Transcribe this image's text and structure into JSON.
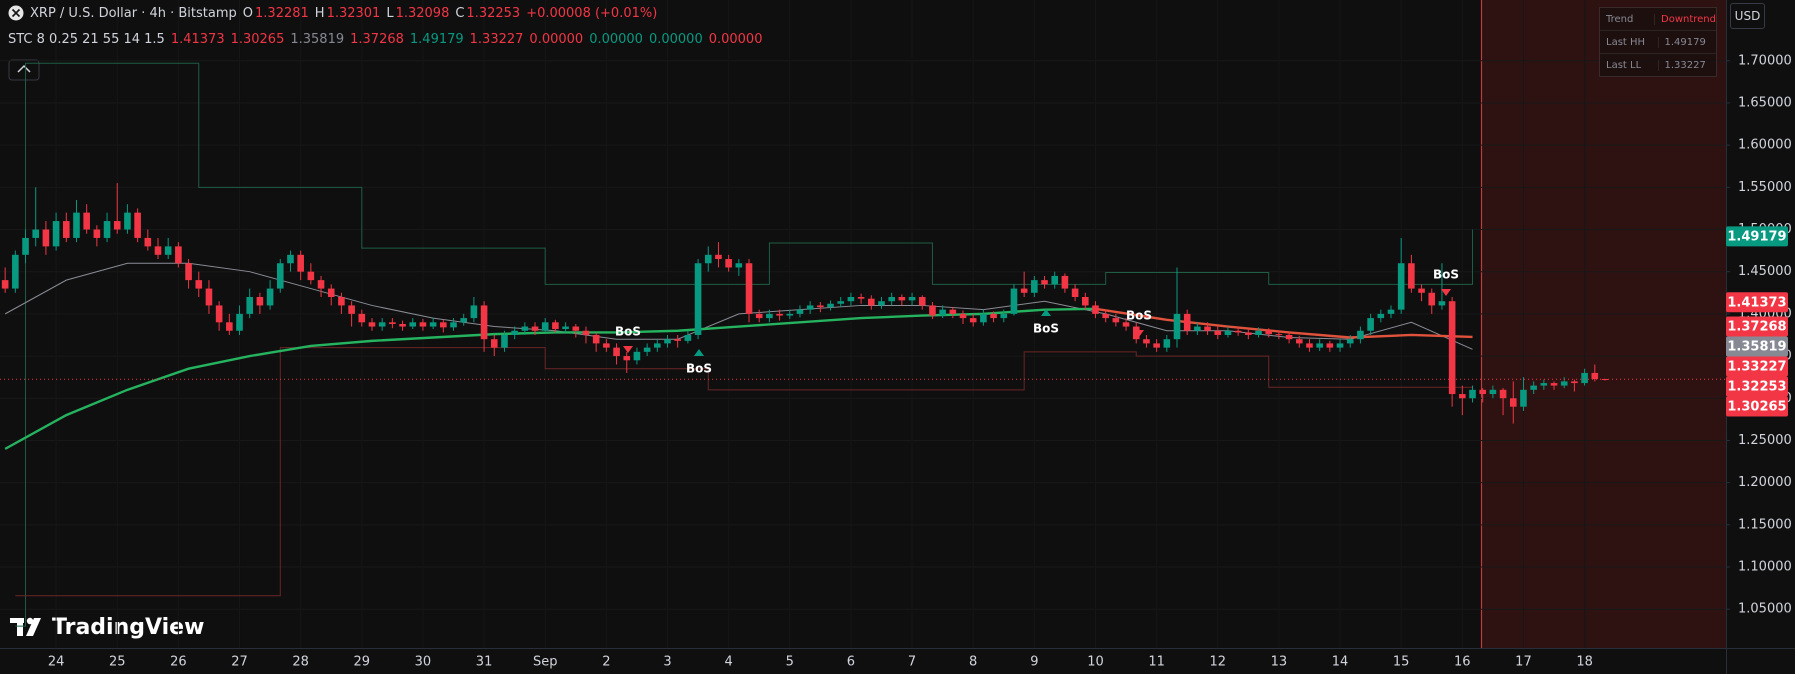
{
  "chart_data": {
    "type": "candlestick",
    "title": "XRP / U.S. Dollar · 4h · Bitstamp",
    "ohlc_labels": [
      "O",
      "H",
      "L",
      "C"
    ],
    "change": "+0.00008 (+0.01%)",
    "indicator": {
      "name": "STC 8 0.25 21 55 14 1.5",
      "values": [
        {
          "value": 1.41373,
          "color": "#f23645"
        },
        {
          "value": 1.30265,
          "color": "#f23645"
        },
        {
          "value": 1.35819,
          "color": "#868993"
        },
        {
          "value": 1.37268,
          "color": "#f23645"
        },
        {
          "value": 1.49179,
          "color": "#089981"
        },
        {
          "value": 1.33227,
          "color": "#f23645"
        },
        {
          "value": 0,
          "label": "0.00000",
          "color": "#f23645"
        },
        {
          "value": 0,
          "label": "0.00000",
          "color": "#089981"
        },
        {
          "value": 0,
          "label": "0.00000",
          "color": "#089981"
        },
        {
          "value": 0,
          "label": "0.00000",
          "color": "#f23645"
        }
      ]
    },
    "trend_table": {
      "trend_label": "Trend",
      "trend": "Downtrend",
      "hh_label": "Last HH",
      "ll_label": "Last LL"
    },
    "annotations": [
      "BoS",
      "BoS",
      "BoS",
      "BoS",
      "BoS"
    ],
    "currency": "USD",
    "watermark": "TradingView",
    "up_color": "#089981",
    "down_color": "#f23645",
    "categories": [
      null,
      null,
      null,
      null,
      null,
      "24",
      null,
      null,
      null,
      null,
      null,
      "25",
      null,
      null,
      null,
      null,
      null,
      "26",
      null,
      null,
      null,
      null,
      null,
      "27",
      null,
      null,
      null,
      null,
      null,
      "28",
      null,
      null,
      null,
      null,
      null,
      "29",
      null,
      null,
      null,
      null,
      null,
      "30",
      null,
      null,
      null,
      null,
      null,
      "31",
      null,
      null,
      null,
      null,
      null,
      "Sep",
      null,
      null,
      null,
      null,
      null,
      "2",
      null,
      null,
      null,
      null,
      null,
      "3",
      null,
      null,
      null,
      null,
      null,
      "4",
      null,
      null,
      null,
      null,
      null,
      "5",
      null,
      null,
      null,
      null,
      null,
      "6",
      null,
      null,
      null,
      null,
      null,
      "7",
      null,
      null,
      null,
      null,
      null,
      "8",
      null,
      null,
      null,
      null,
      null,
      "9",
      null,
      null,
      null,
      null,
      null,
      "10",
      null,
      null,
      null,
      null,
      null,
      "11",
      null,
      null,
      null,
      null,
      null,
      "12",
      null,
      null,
      null,
      null,
      null,
      "13",
      null,
      null,
      null,
      null,
      null,
      "14",
      null,
      null,
      null,
      null,
      null,
      "15",
      null,
      null,
      null,
      null,
      null,
      "16",
      null,
      null,
      null,
      null,
      null,
      "17",
      null,
      null,
      null,
      null,
      null,
      "18",
      null,
      null
    ],
    "ohlc": [
      [
        1.44,
        1.455,
        1.425,
        1.43
      ],
      [
        1.43,
        1.475,
        1.425,
        1.47
      ],
      [
        1.47,
        1.5,
        1.46,
        1.49
      ],
      [
        1.49,
        1.55,
        1.48,
        1.5
      ],
      [
        1.5,
        1.51,
        1.47,
        1.48
      ],
      [
        1.48,
        1.52,
        1.475,
        1.51
      ],
      [
        1.51,
        1.52,
        1.485,
        1.49
      ],
      [
        1.49,
        1.535,
        1.485,
        1.52
      ],
      [
        1.52,
        1.53,
        1.495,
        1.5
      ],
      [
        1.5,
        1.505,
        1.48,
        1.49
      ],
      [
        1.49,
        1.52,
        1.485,
        1.51
      ],
      [
        1.51,
        1.555,
        1.495,
        1.5
      ],
      [
        1.5,
        1.53,
        1.495,
        1.52
      ],
      [
        1.52,
        1.525,
        1.485,
        1.49
      ],
      [
        1.49,
        1.5,
        1.475,
        1.48
      ],
      [
        1.48,
        1.49,
        1.465,
        1.47
      ],
      [
        1.47,
        1.49,
        1.465,
        1.48
      ],
      [
        1.48,
        1.485,
        1.455,
        1.46
      ],
      [
        1.46,
        1.465,
        1.43,
        1.44
      ],
      [
        1.44,
        1.45,
        1.42,
        1.43
      ],
      [
        1.43,
        1.44,
        1.4,
        1.41
      ],
      [
        1.41,
        1.415,
        1.38,
        1.39
      ],
      [
        1.39,
        1.4,
        1.375,
        1.38
      ],
      [
        1.38,
        1.41,
        1.375,
        1.4
      ],
      [
        1.4,
        1.43,
        1.395,
        1.42
      ],
      [
        1.42,
        1.425,
        1.4,
        1.41
      ],
      [
        1.41,
        1.44,
        1.405,
        1.43
      ],
      [
        1.43,
        1.465,
        1.425,
        1.46
      ],
      [
        1.46,
        1.475,
        1.45,
        1.47
      ],
      [
        1.47,
        1.475,
        1.44,
        1.45
      ],
      [
        1.45,
        1.46,
        1.435,
        1.44
      ],
      [
        1.44,
        1.445,
        1.42,
        1.43
      ],
      [
        1.43,
        1.435,
        1.41,
        1.42
      ],
      [
        1.42,
        1.425,
        1.4,
        1.41
      ],
      [
        1.41,
        1.415,
        1.385,
        1.4
      ],
      [
        1.4,
        1.405,
        1.385,
        1.39
      ],
      [
        1.39,
        1.395,
        1.38,
        1.385
      ],
      [
        1.385,
        1.395,
        1.38,
        1.39
      ],
      [
        1.39,
        1.395,
        1.383,
        1.388
      ],
      [
        1.388,
        1.392,
        1.38,
        1.385
      ],
      [
        1.385,
        1.395,
        1.382,
        1.39
      ],
      [
        1.39,
        1.394,
        1.38,
        1.385
      ],
      [
        1.385,
        1.395,
        1.382,
        1.39
      ],
      [
        1.39,
        1.393,
        1.378,
        1.384
      ],
      [
        1.384,
        1.395,
        1.38,
        1.39
      ],
      [
        1.39,
        1.4,
        1.386,
        1.395
      ],
      [
        1.395,
        1.42,
        1.39,
        1.41
      ],
      [
        1.41,
        1.415,
        1.355,
        1.37
      ],
      [
        1.37,
        1.375,
        1.35,
        1.36
      ],
      [
        1.36,
        1.38,
        1.355,
        1.375
      ],
      [
        1.375,
        1.385,
        1.37,
        1.38
      ],
      [
        1.38,
        1.39,
        1.375,
        1.385
      ],
      [
        1.385,
        1.39,
        1.375,
        1.38
      ],
      [
        1.38,
        1.395,
        1.378,
        1.39
      ],
      [
        1.39,
        1.393,
        1.378,
        1.382
      ],
      [
        1.382,
        1.39,
        1.378,
        1.385
      ],
      [
        1.385,
        1.388,
        1.372,
        1.38
      ],
      [
        1.38,
        1.385,
        1.365,
        1.375
      ],
      [
        1.375,
        1.378,
        1.355,
        1.365
      ],
      [
        1.365,
        1.37,
        1.355,
        1.36
      ],
      [
        1.36,
        1.365,
        1.34,
        1.35
      ],
      [
        1.35,
        1.355,
        1.33,
        1.345
      ],
      [
        1.345,
        1.36,
        1.34,
        1.355
      ],
      [
        1.355,
        1.365,
        1.35,
        1.36
      ],
      [
        1.36,
        1.37,
        1.355,
        1.365
      ],
      [
        1.365,
        1.375,
        1.36,
        1.37
      ],
      [
        1.37,
        1.375,
        1.36,
        1.368
      ],
      [
        1.368,
        1.38,
        1.365,
        1.375
      ],
      [
        1.375,
        1.465,
        1.37,
        1.46
      ],
      [
        1.46,
        1.48,
        1.45,
        1.47
      ],
      [
        1.47,
        1.485,
        1.455,
        1.465
      ],
      [
        1.465,
        1.47,
        1.45,
        1.455
      ],
      [
        1.455,
        1.465,
        1.445,
        1.46
      ],
      [
        1.46,
        1.465,
        1.39,
        1.4
      ],
      [
        1.4,
        1.405,
        1.39,
        1.395
      ],
      [
        1.395,
        1.405,
        1.39,
        1.4
      ],
      [
        1.4,
        1.405,
        1.392,
        1.398
      ],
      [
        1.398,
        1.405,
        1.394,
        1.4
      ],
      [
        1.4,
        1.41,
        1.396,
        1.405
      ],
      [
        1.405,
        1.415,
        1.4,
        1.41
      ],
      [
        1.41,
        1.414,
        1.402,
        1.408
      ],
      [
        1.408,
        1.416,
        1.404,
        1.412
      ],
      [
        1.412,
        1.42,
        1.408,
        1.415
      ],
      [
        1.415,
        1.425,
        1.41,
        1.42
      ],
      [
        1.42,
        1.424,
        1.412,
        1.418
      ],
      [
        1.418,
        1.422,
        1.405,
        1.41
      ],
      [
        1.41,
        1.42,
        1.406,
        1.415
      ],
      [
        1.415,
        1.425,
        1.41,
        1.42
      ],
      [
        1.42,
        1.423,
        1.41,
        1.416
      ],
      [
        1.416,
        1.425,
        1.41,
        1.42
      ],
      [
        1.42,
        1.422,
        1.405,
        1.41
      ],
      [
        1.41,
        1.414,
        1.394,
        1.398
      ],
      [
        1.398,
        1.41,
        1.395,
        1.405
      ],
      [
        1.405,
        1.408,
        1.395,
        1.4
      ],
      [
        1.4,
        1.404,
        1.388,
        1.395
      ],
      [
        1.395,
        1.4,
        1.385,
        1.39
      ],
      [
        1.39,
        1.405,
        1.386,
        1.4
      ],
      [
        1.4,
        1.403,
        1.39,
        1.395
      ],
      [
        1.395,
        1.405,
        1.39,
        1.4
      ],
      [
        1.4,
        1.435,
        1.398,
        1.43
      ],
      [
        1.43,
        1.45,
        1.42,
        1.425
      ],
      [
        1.425,
        1.445,
        1.42,
        1.44
      ],
      [
        1.44,
        1.445,
        1.43,
        1.435
      ],
      [
        1.435,
        1.45,
        1.43,
        1.445
      ],
      [
        1.445,
        1.448,
        1.425,
        1.43
      ],
      [
        1.43,
        1.435,
        1.415,
        1.42
      ],
      [
        1.42,
        1.425,
        1.405,
        1.41
      ],
      [
        1.41,
        1.415,
        1.395,
        1.4
      ],
      [
        1.4,
        1.405,
        1.39,
        1.395
      ],
      [
        1.395,
        1.4,
        1.385,
        1.39
      ],
      [
        1.39,
        1.395,
        1.38,
        1.385
      ],
      [
        1.385,
        1.39,
        1.365,
        1.37
      ],
      [
        1.37,
        1.375,
        1.36,
        1.365
      ],
      [
        1.365,
        1.37,
        1.355,
        1.36
      ],
      [
        1.36,
        1.375,
        1.355,
        1.37
      ],
      [
        1.37,
        1.455,
        1.36,
        1.4
      ],
      [
        1.4,
        1.405,
        1.375,
        1.38
      ],
      [
        1.38,
        1.39,
        1.375,
        1.385
      ],
      [
        1.385,
        1.39,
        1.375,
        1.38
      ],
      [
        1.38,
        1.385,
        1.37,
        1.375
      ],
      [
        1.375,
        1.385,
        1.372,
        1.38
      ],
      [
        1.38,
        1.384,
        1.374,
        1.378
      ],
      [
        1.378,
        1.382,
        1.37,
        1.375
      ],
      [
        1.375,
        1.384,
        1.372,
        1.38
      ],
      [
        1.38,
        1.383,
        1.372,
        1.376
      ],
      [
        1.376,
        1.38,
        1.37,
        1.375
      ],
      [
        1.375,
        1.378,
        1.365,
        1.37
      ],
      [
        1.37,
        1.374,
        1.36,
        1.365
      ],
      [
        1.365,
        1.37,
        1.355,
        1.36
      ],
      [
        1.36,
        1.37,
        1.356,
        1.365
      ],
      [
        1.365,
        1.368,
        1.355,
        1.36
      ],
      [
        1.36,
        1.37,
        1.355,
        1.365
      ],
      [
        1.365,
        1.375,
        1.36,
        1.37
      ],
      [
        1.37,
        1.385,
        1.365,
        1.38
      ],
      [
        1.38,
        1.4,
        1.375,
        1.395
      ],
      [
        1.395,
        1.405,
        1.39,
        1.4
      ],
      [
        1.4,
        1.41,
        1.395,
        1.405
      ],
      [
        1.405,
        1.49,
        1.4,
        1.46
      ],
      [
        1.46,
        1.47,
        1.425,
        1.43
      ],
      [
        1.43,
        1.435,
        1.415,
        1.425
      ],
      [
        1.425,
        1.43,
        1.4,
        1.41
      ],
      [
        1.41,
        1.46,
        1.405,
        1.415
      ],
      [
        1.415,
        1.42,
        1.29,
        1.305
      ],
      [
        1.305,
        1.315,
        1.28,
        1.3
      ],
      [
        1.3,
        1.315,
        1.295,
        1.31
      ],
      [
        1.31,
        1.312,
        1.295,
        1.305
      ],
      [
        1.305,
        1.315,
        1.3,
        1.31
      ],
      [
        1.31,
        1.312,
        1.28,
        1.3
      ],
      [
        1.3,
        1.32,
        1.27,
        1.29
      ],
      [
        1.29,
        1.325,
        1.285,
        1.31
      ],
      [
        1.31,
        1.32,
        1.305,
        1.315
      ],
      [
        1.315,
        1.322,
        1.31,
        1.318
      ],
      [
        1.318,
        1.32,
        1.31,
        1.315
      ],
      [
        1.315,
        1.325,
        1.312,
        1.32
      ],
      [
        1.32,
        1.322,
        1.308,
        1.318
      ],
      [
        1.318,
        1.335,
        1.315,
        1.33
      ],
      [
        1.33,
        1.34,
        1.32,
        1.32281
      ],
      [
        1.32281,
        1.32301,
        1.32098,
        1.32253
      ]
    ],
    "ylim": [
      1.004,
      1.772
    ],
    "yticks": [
      {
        "value": 1.05,
        "label": "1.05000"
      },
      {
        "value": 1.1,
        "label": "1.10000"
      },
      {
        "value": 1.15,
        "label": "1.15000"
      },
      {
        "value": 1.2,
        "label": "1.20000"
      },
      {
        "value": 1.25,
        "label": "1.25000"
      },
      {
        "value": 1.3,
        "label": "1.30000"
      },
      {
        "value": 1.35,
        "label": "1.35000"
      },
      {
        "value": 1.4,
        "label": "1.40000"
      },
      {
        "value": 1.45,
        "label": "1.45000"
      },
      {
        "value": 1.5,
        "label": "1.50000"
      },
      {
        "value": 1.55,
        "label": "1.55000"
      },
      {
        "value": 1.6,
        "label": "1.60000"
      },
      {
        "value": 1.65,
        "label": "1.65000"
      },
      {
        "value": 1.7,
        "label": "1.70000"
      }
    ],
    "overlays": [
      {
        "color": "#1f5e45",
        "step": true,
        "x": [
          1,
          2,
          19,
          35,
          53,
          75,
          91,
          108,
          124,
          138,
          144
        ],
        "values": [
          1.03,
          1.697,
          1.55,
          1.478,
          1.435,
          1.484,
          1.435,
          1.449,
          1.435,
          1.435,
          1.5
        ]
      },
      {
        "color": "#6b2626",
        "step": true,
        "x": [
          1,
          27,
          53,
          69,
          100,
          111,
          124,
          144
        ],
        "values": [
          1.066,
          1.36,
          1.335,
          1.31,
          1.355,
          1.35,
          1.313,
          1.313
        ]
      },
      {
        "color": "#8a8d96",
        "x": [
          0,
          6,
          12,
          18,
          24,
          30,
          36,
          42,
          48,
          54,
          60,
          66,
          72,
          78,
          84,
          90,
          96,
          102,
          108,
          114,
          120,
          126,
          132,
          138,
          144
        ],
        "values": [
          1.4,
          1.44,
          1.46,
          1.46,
          1.45,
          1.43,
          1.41,
          1.395,
          1.385,
          1.38,
          1.37,
          1.37,
          1.4,
          1.405,
          1.41,
          1.41,
          1.405,
          1.415,
          1.4,
          1.38,
          1.38,
          1.372,
          1.37,
          1.39,
          1.358
        ]
      },
      {
        "color": "#26b35f",
        "x": [
          0,
          6,
          12,
          18,
          24,
          30,
          36,
          42,
          48,
          54,
          60,
          66,
          72,
          78,
          84,
          90,
          96,
          102,
          107
        ],
        "values": [
          1.24,
          1.28,
          1.31,
          1.335,
          1.35,
          1.362,
          1.368,
          1.372,
          1.376,
          1.378,
          1.378,
          1.38,
          1.385,
          1.39,
          1.395,
          1.398,
          1.4,
          1.405,
          1.406
        ]
      },
      {
        "color": "#e0523c",
        "x": [
          107,
          114,
          120,
          126,
          132,
          138,
          144
        ],
        "values": [
          1.406,
          1.393,
          1.385,
          1.378,
          1.372,
          1.375,
          1.3727
        ]
      }
    ],
    "grid": true
  }
}
